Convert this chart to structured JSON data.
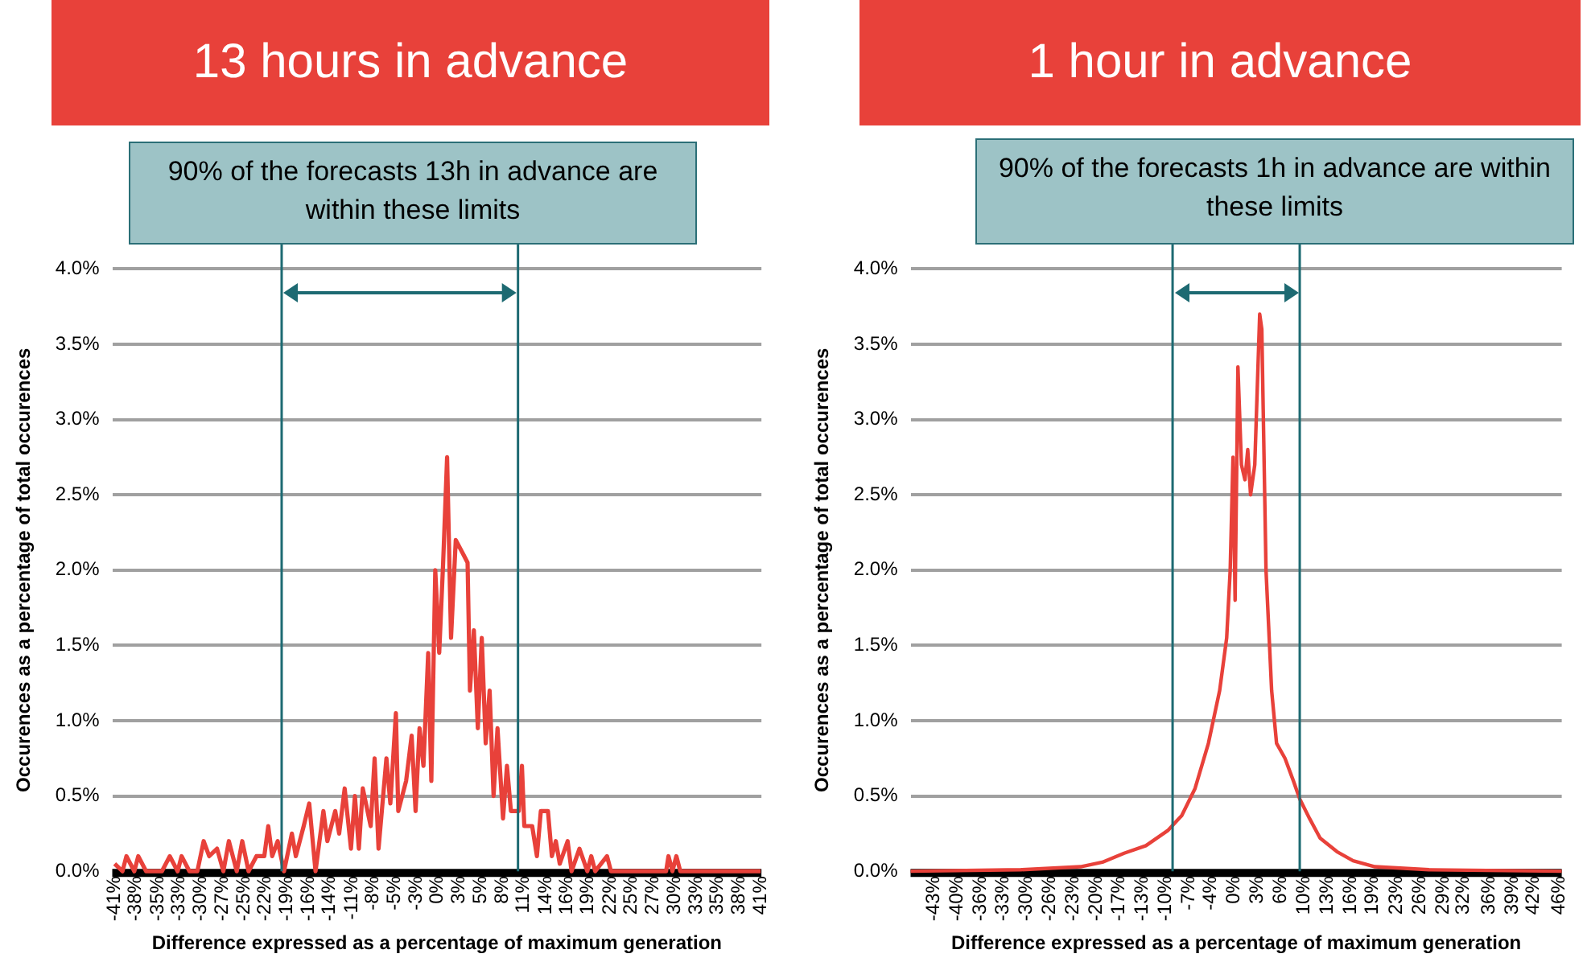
{
  "chart_data": [
    {
      "type": "line",
      "title": "13 hours in advance",
      "annotations": [
        "90% of the forecasts 13h in advance are within these limits"
      ],
      "xlabel": "Difference expressed as a percentage of maximum generation",
      "ylabel": "Occurences as a percentage of total occurences",
      "grid": "y",
      "xlim": [
        -41.3,
        41.1
      ],
      "ylim": [
        0,
        4
      ],
      "xticks": [
        {
          "value": -41,
          "label": "-41%"
        },
        {
          "value": -38.3,
          "label": "-38%"
        },
        {
          "value": -35.5,
          "label": "-35%"
        },
        {
          "value": -32.8,
          "label": "-33%"
        },
        {
          "value": -30.1,
          "label": "-30%"
        },
        {
          "value": -27.3,
          "label": "-27%"
        },
        {
          "value": -24.6,
          "label": "-25%"
        },
        {
          "value": -21.9,
          "label": "-22%"
        },
        {
          "value": -19.1,
          "label": "-19%"
        },
        {
          "value": -16.4,
          "label": "-16%"
        },
        {
          "value": -13.7,
          "label": "-14%"
        },
        {
          "value": -10.9,
          "label": "-11%"
        },
        {
          "value": -8.2,
          "label": "-8%"
        },
        {
          "value": -5.5,
          "label": "-5%"
        },
        {
          "value": -2.7,
          "label": "-3%"
        },
        {
          "value": 0,
          "label": "0%"
        },
        {
          "value": 2.7,
          "label": "3%"
        },
        {
          "value": 5.5,
          "label": "5%"
        },
        {
          "value": 8.2,
          "label": "8%"
        },
        {
          "value": 10.9,
          "label": "11%"
        },
        {
          "value": 13.7,
          "label": "14%"
        },
        {
          "value": 16.4,
          "label": "16%"
        },
        {
          "value": 19.1,
          "label": "19%"
        },
        {
          "value": 21.9,
          "label": "22%"
        },
        {
          "value": 24.6,
          "label": "25%"
        },
        {
          "value": 27.3,
          "label": "27%"
        },
        {
          "value": 30.1,
          "label": "30%"
        },
        {
          "value": 32.8,
          "label": "33%"
        },
        {
          "value": 35.5,
          "label": "35%"
        },
        {
          "value": 38.3,
          "label": "38%"
        },
        {
          "value": 41,
          "label": "41%"
        }
      ],
      "yticks": [
        {
          "value": 0,
          "label": "0.0%"
        },
        {
          "value": 0.5,
          "label": "0.5%"
        },
        {
          "value": 1,
          "label": "1.0%"
        },
        {
          "value": 1.5,
          "label": "1.5%"
        },
        {
          "value": 2,
          "label": "2.0%"
        },
        {
          "value": 2.5,
          "label": "2.5%"
        },
        {
          "value": 3,
          "label": "3.0%"
        },
        {
          "value": 3.5,
          "label": "3.5%"
        },
        {
          "value": 4,
          "label": "4.0%"
        }
      ],
      "ref_lines": [
        {
          "axis": "x",
          "value": -19.8,
          "color": "#1d6a72"
        },
        {
          "axis": "x",
          "value": 10.2,
          "color": "#1d6a72"
        }
      ],
      "x": [
        -41,
        -40,
        -39.5,
        -38.5,
        -38,
        -37,
        -35,
        -34,
        -33,
        -32.5,
        -31.5,
        -30.5,
        -29.7,
        -29,
        -28,
        -27.2,
        -26.5,
        -25.5,
        -24.8,
        -24,
        -23,
        -22,
        -21.5,
        -21,
        -20.3,
        -19.5,
        -18.5,
        -18,
        -17,
        -16.3,
        -15.5,
        -14.5,
        -14,
        -13,
        -12.5,
        -11.8,
        -11,
        -10.5,
        -10,
        -9.5,
        -8.5,
        -8,
        -7.5,
        -6.5,
        -6,
        -5.3,
        -5,
        -4,
        -3.3,
        -2.8,
        -2.3,
        -1.8,
        -1.2,
        -0.8,
        -0.3,
        0.2,
        0.7,
        1.2,
        1.7,
        2.3,
        3.3,
        3.8,
        4.1,
        4.6,
        5.1,
        5.6,
        6.1,
        6.6,
        7.1,
        7.6,
        8.3,
        8.8,
        9.3,
        10.3,
        10.7,
        11,
        12,
        12.6,
        13.1,
        14,
        14.5,
        15,
        15.5,
        16.5,
        17,
        18,
        19,
        19.5,
        20,
        21.5,
        22,
        29,
        29.3,
        29.8,
        30.3,
        30.8,
        41
      ],
      "series": [
        {
          "color": "#e8413a",
          "values": [
            0.05,
            0,
            0.1,
            0,
            0.1,
            0,
            0,
            0.1,
            0,
            0.1,
            0,
            0,
            0.2,
            0.1,
            0.15,
            0,
            0.2,
            0,
            0.2,
            0,
            0.1,
            0.1,
            0.3,
            0.1,
            0.2,
            0,
            0.25,
            0.1,
            0.3,
            0.45,
            0,
            0.4,
            0.2,
            0.4,
            0.25,
            0.55,
            0.15,
            0.5,
            0.15,
            0.55,
            0.3,
            0.75,
            0.15,
            0.75,
            0.45,
            1.05,
            0.4,
            0.6,
            0.9,
            0.4,
            0.95,
            0.7,
            1.45,
            0.6,
            2.0,
            1.45,
            2.05,
            2.75,
            1.55,
            2.2,
            2.1,
            2.05,
            1.2,
            1.6,
            0.95,
            1.55,
            0.85,
            1.2,
            0.5,
            0.95,
            0.35,
            0.7,
            0.4,
            0.4,
            0.7,
            0.3,
            0.3,
            0.1,
            0.4,
            0.4,
            0.1,
            0.2,
            0.05,
            0.2,
            0,
            0.15,
            0,
            0.1,
            0,
            0.1,
            0,
            0,
            0.1,
            0,
            0.1,
            0,
            0
          ]
        }
      ]
    },
    {
      "type": "line",
      "title": "1 hour in advance",
      "annotations": [
        "90% of the forecasts 1h in advance are within these limits"
      ],
      "xlabel": "Difference expressed as a percentage of maximum generation",
      "ylabel": "Occurences as a percentage of total occurences",
      "grid": "y",
      "xlim": [
        -46.3,
        46.4
      ],
      "ylim": [
        0,
        4
      ],
      "xticks": [
        {
          "value": -43,
          "label": "-43%"
        },
        {
          "value": -39.7,
          "label": "-40%"
        },
        {
          "value": -36.4,
          "label": "-36%"
        },
        {
          "value": -33.1,
          "label": "-33%"
        },
        {
          "value": -29.8,
          "label": "-30%"
        },
        {
          "value": -26.5,
          "label": "-26%"
        },
        {
          "value": -23.2,
          "label": "-23%"
        },
        {
          "value": -19.9,
          "label": "-20%"
        },
        {
          "value": -16.6,
          "label": "-17%"
        },
        {
          "value": -13.3,
          "label": "-13%"
        },
        {
          "value": -10,
          "label": "-10%"
        },
        {
          "value": -6.7,
          "label": "-7%"
        },
        {
          "value": -3.6,
          "label": "-4%"
        },
        {
          "value": -0.2,
          "label": "0%"
        },
        {
          "value": 3.1,
          "label": "3%"
        },
        {
          "value": 6.4,
          "label": "6%"
        },
        {
          "value": 9.7,
          "label": "10%"
        },
        {
          "value": 13,
          "label": "13%"
        },
        {
          "value": 16.3,
          "label": "16%"
        },
        {
          "value": 19.4,
          "label": "19%"
        },
        {
          "value": 22.9,
          "label": "23%"
        },
        {
          "value": 26.2,
          "label": "26%"
        },
        {
          "value": 29.5,
          "label": "29%"
        },
        {
          "value": 32.4,
          "label": "32%"
        },
        {
          "value": 36.1,
          "label": "36%"
        },
        {
          "value": 39.4,
          "label": "39%"
        },
        {
          "value": 42.4,
          "label": "42%"
        },
        {
          "value": 46,
          "label": "46%"
        }
      ],
      "yticks": [
        {
          "value": 0,
          "label": "0.0%"
        },
        {
          "value": 0.5,
          "label": "0.5%"
        },
        {
          "value": 1,
          "label": "1.0%"
        },
        {
          "value": 1.5,
          "label": "1.5%"
        },
        {
          "value": 2,
          "label": "2.0%"
        },
        {
          "value": 2.5,
          "label": "2.5%"
        },
        {
          "value": 3,
          "label": "3.0%"
        },
        {
          "value": 3.5,
          "label": "3.5%"
        },
        {
          "value": 4,
          "label": "4.0%"
        }
      ],
      "ref_lines": [
        {
          "axis": "x",
          "value": -9,
          "color": "#1d6a72"
        },
        {
          "axis": "x",
          "value": 9.1,
          "color": "#1d6a72"
        }
      ],
      "x": [
        -46.3,
        -30.6,
        -22.1,
        -19,
        -15.9,
        -12.8,
        -9.7,
        -7.7,
        -5.8,
        -3.9,
        -2.3,
        -1.3,
        -0.8,
        -0.4,
        -0.1,
        0.3,
        0.8,
        1.3,
        1.7,
        2.1,
        2.7,
        3.4,
        3.7,
        4.3,
        5.1,
        5.8,
        7,
        8.2,
        9.1,
        10.5,
        12,
        14.4,
        16.7,
        19.8,
        27.5,
        46.4
      ],
      "series": [
        {
          "color": "#e8413a",
          "values": [
            0,
            0.01,
            0.03,
            0.06,
            0.12,
            0.17,
            0.27,
            0.37,
            0.55,
            0.85,
            1.2,
            1.55,
            2.0,
            2.75,
            1.8,
            3.35,
            2.7,
            2.6,
            2.8,
            2.5,
            2.7,
            3.7,
            3.6,
            2.0,
            1.2,
            0.85,
            0.75,
            0.6,
            0.48,
            0.35,
            0.22,
            0.13,
            0.07,
            0.03,
            0.01,
            0
          ]
        }
      ]
    }
  ]
}
